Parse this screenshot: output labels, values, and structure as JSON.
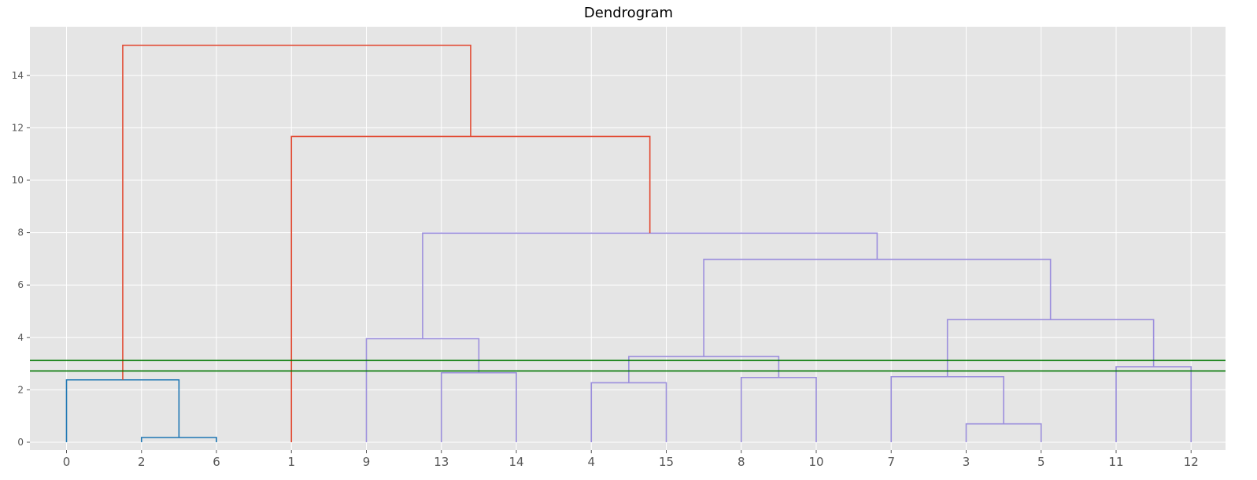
{
  "chart_data": {
    "type": "dendrogram",
    "title": "Dendrogram",
    "xlabel": "",
    "ylabel": "",
    "ylim": [
      0,
      15.8
    ],
    "y_ticks": [
      0,
      2,
      4,
      6,
      8,
      10,
      12,
      14
    ],
    "leaves": [
      "0",
      "2",
      "6",
      "1",
      "9",
      "13",
      "14",
      "4",
      "15",
      "8",
      "10",
      "7",
      "3",
      "5",
      "11",
      "12"
    ],
    "grid": true,
    "style": "ggplot",
    "colors": {
      "background": "#E5E5E5",
      "grid": "#FFFFFF",
      "cluster_1": "#1F77B4",
      "cluster_2": "#9C8FDD",
      "above_threshold": "#E24A33",
      "threshold_lines": "#007700"
    },
    "merges": [
      {
        "left": 1.0,
        "right": 2.0,
        "height": 0.18,
        "color": "cluster_1"
      },
      {
        "left": 0.0,
        "right": 1.5,
        "height": 2.38,
        "color": "cluster_1"
      },
      {
        "left": 5.0,
        "right": 6.0,
        "height": 2.65,
        "color": "cluster_2"
      },
      {
        "left": 4.0,
        "right": 5.5,
        "height": 3.95,
        "color": "cluster_2"
      },
      {
        "left": 7.0,
        "right": 8.0,
        "height": 2.27,
        "color": "cluster_2"
      },
      {
        "left": 9.0,
        "right": 10.0,
        "height": 2.47,
        "color": "cluster_2"
      },
      {
        "left": 7.5,
        "right": 9.5,
        "height": 3.27,
        "color": "cluster_2"
      },
      {
        "left": 12.0,
        "right": 13.0,
        "height": 0.7,
        "color": "cluster_2"
      },
      {
        "left": 11.0,
        "right": 12.5,
        "height": 2.5,
        "color": "cluster_2"
      },
      {
        "left": 14.0,
        "right": 15.0,
        "height": 2.88,
        "color": "cluster_2"
      },
      {
        "left": 11.75,
        "right": 14.5,
        "height": 4.68,
        "color": "cluster_2"
      },
      {
        "left": 8.5,
        "right": 13.125,
        "height": 6.98,
        "color": "cluster_2"
      },
      {
        "left": 4.75,
        "right": 10.8125,
        "height": 7.98,
        "color": "cluster_2"
      },
      {
        "left": 3.0,
        "right": 7.78125,
        "height": 11.67,
        "color": "above_threshold"
      },
      {
        "left": 0.75,
        "right": 5.390625,
        "height": 15.15,
        "color": "above_threshold"
      }
    ],
    "threshold_lines": [
      3.12,
      2.72
    ]
  }
}
